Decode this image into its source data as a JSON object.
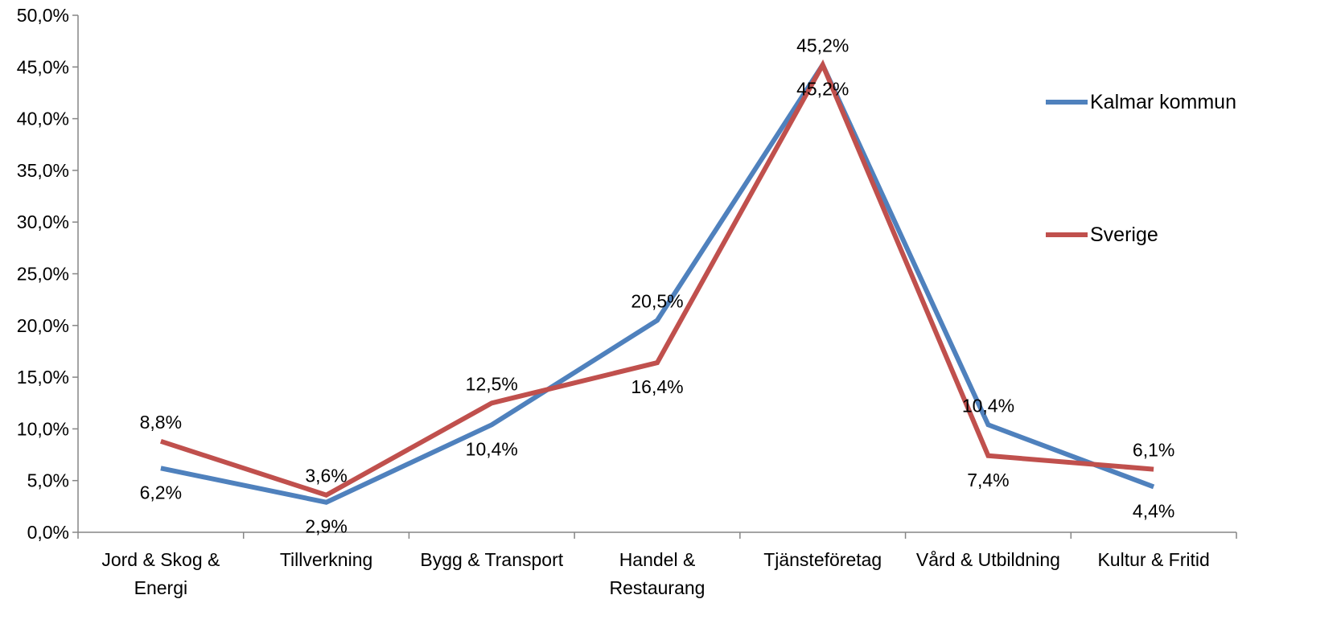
{
  "chart_data": {
    "type": "line",
    "categories": [
      [
        "Jord & Skog &",
        "Energi"
      ],
      [
        "Tillverkning"
      ],
      [
        "Bygg & Transport"
      ],
      [
        "Handel &",
        "Restaurang"
      ],
      [
        "Tjänsteföretag"
      ],
      [
        "Vård & Utbildning"
      ],
      [
        "Kultur & Fritid"
      ]
    ],
    "series": [
      {
        "name": "Kalmar kommun",
        "color": "#4F81BD",
        "values": [
          6.2,
          2.9,
          10.4,
          20.5,
          45.2,
          10.4,
          4.4
        ],
        "labels": [
          "6,2%",
          "2,9%",
          "10,4%",
          "20,5%",
          "45,2%",
          "10,4%",
          "4,4%"
        ],
        "label_position": [
          "below",
          "below",
          "below",
          "above",
          "below",
          "above",
          "below"
        ]
      },
      {
        "name": "Sverige",
        "color": "#C0504D",
        "values": [
          8.8,
          3.6,
          12.5,
          16.4,
          45.2,
          7.4,
          6.1
        ],
        "labels": [
          "8,8%",
          "3,6%",
          "12,5%",
          "16,4%",
          "45,2%",
          "7,4%",
          "6,1%"
        ],
        "label_position": [
          "above",
          "above",
          "above",
          "below",
          "above",
          "below",
          "above"
        ]
      }
    ],
    "y_ticks": [
      "0,0%",
      "5,0%",
      "10,0%",
      "15,0%",
      "20,0%",
      "25,0%",
      "30,0%",
      "35,0%",
      "40,0%",
      "45,0%",
      "50,0%"
    ],
    "ylim": [
      0,
      50
    ],
    "title": "",
    "xlabel": "",
    "ylabel": "",
    "grid": false,
    "legend_position": "right"
  }
}
